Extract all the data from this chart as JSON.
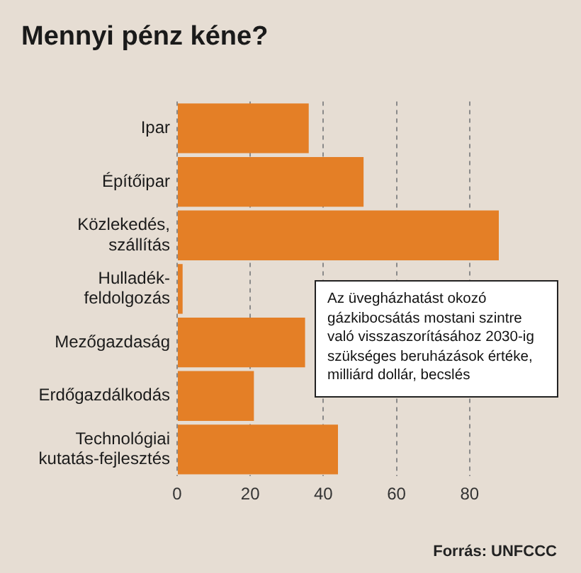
{
  "chart_data": {
    "type": "bar",
    "orientation": "horizontal",
    "title": "Mennyi pénz kéne?",
    "categories": [
      "Ipar",
      "Építőipar",
      "Közlekedés,\nszállítás",
      "Hulladék-\nfeldolgozás",
      "Mezőgazdaság",
      "Erdőgazdálkodás",
      "Technológiai\nkutatás-fejlesztés"
    ],
    "values": [
      36,
      51,
      88,
      1.5,
      35,
      21,
      44
    ],
    "color": "#e47f26",
    "xlim": [
      0,
      88
    ],
    "xticks": [
      0,
      20,
      40,
      60,
      80
    ],
    "grid": "x",
    "annotations": [
      "Az üvegházhatást okozó\ngázkibocsátás mostani szintre\nvaló visszaszorításához 2030-ig\nszükséges beruházások értéke,\nmilliárd dollár, becslés",
      "Forrás: UNFCCC"
    ]
  }
}
